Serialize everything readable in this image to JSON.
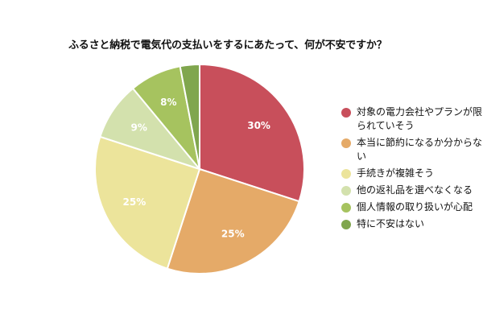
{
  "chart_data": {
    "type": "pie",
    "title": "ふるさと納税で電気代の支払いをするにあたって、何が不安ですか？",
    "slices": [
      {
        "label": "対象の電力会社やプランが限られていそう",
        "value": 30,
        "display": "30%",
        "color": "#c84f5b"
      },
      {
        "label": "本当に節約になるか分からない",
        "value": 25,
        "display": "25%",
        "color": "#e5aa68"
      },
      {
        "label": "手続きが複雑そう",
        "value": 25,
        "display": "25%",
        "color": "#ece49b"
      },
      {
        "label": "他の返礼品を選べなくなる",
        "value": 9,
        "display": "9%",
        "color": "#d3e1ad"
      },
      {
        "label": "個人情報の取り扱いが心配",
        "value": 8,
        "display": "8%",
        "color": "#a6c35f"
      },
      {
        "label": "特に不安はない",
        "value": 3,
        "display": "",
        "color": "#80a64e"
      }
    ],
    "legend_position": "right"
  }
}
